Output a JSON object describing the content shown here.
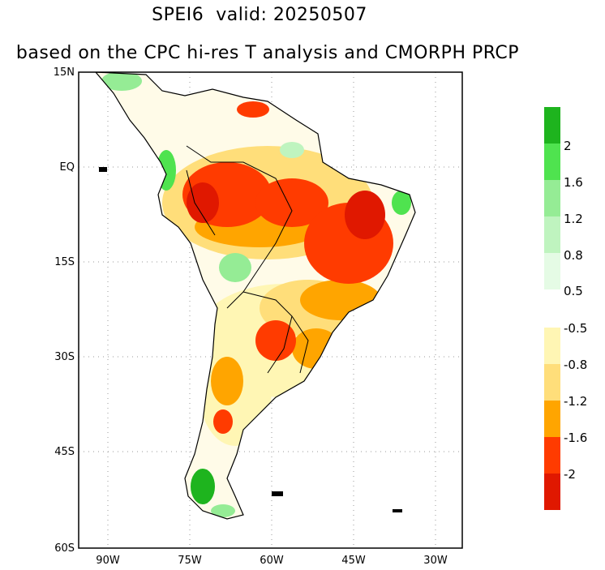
{
  "title": {
    "line1": "SPEI6  valid: 20250507",
    "line2": "based on the CPC hi-res T analysis and CMORPH PRCP"
  },
  "axes": {
    "lat_ticks": [
      "15N",
      "EQ",
      "15S",
      "30S",
      "45S",
      "60S"
    ],
    "lon_ticks": [
      "90W",
      "75W",
      "60W",
      "45W",
      "30W"
    ],
    "lon_range": [
      -95,
      -25
    ],
    "lat_range": [
      -60,
      15
    ],
    "grid": "dotted"
  },
  "colorbar_positive": {
    "labels": [
      "2",
      "1.6",
      "1.2",
      "0.8",
      "0.5"
    ],
    "colors": [
      "#1eb41e",
      "#4fe34f",
      "#95ec95",
      "#bff4bf",
      "#e5fbe5"
    ]
  },
  "colorbar_negative": {
    "labels": [
      "-0.5",
      "-0.8",
      "-1.2",
      "-1.6",
      "-2"
    ],
    "colors": [
      "#fff6b4",
      "#ffde7a",
      "#ffa500",
      "#ff3b00",
      "#e01800"
    ]
  }
}
